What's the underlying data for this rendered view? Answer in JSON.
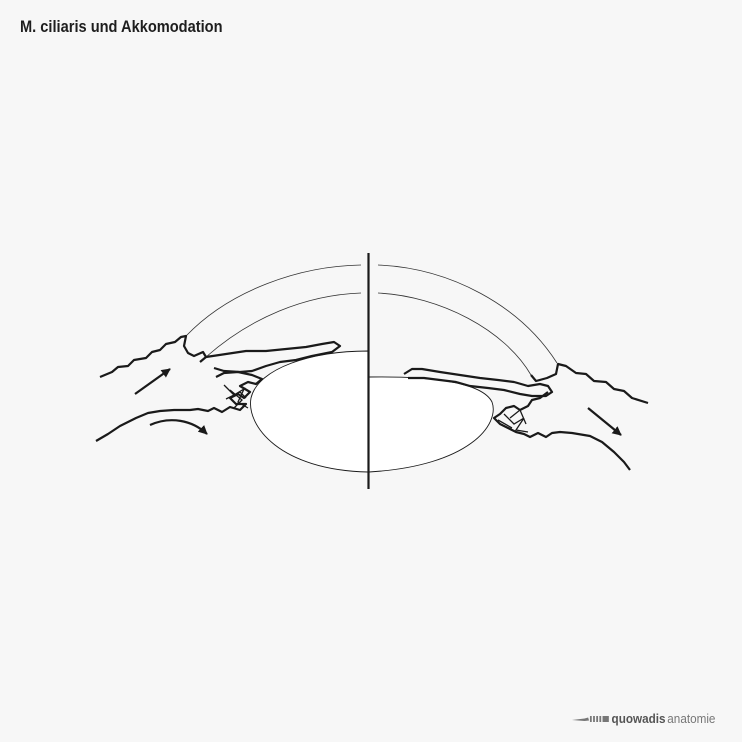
{
  "title": "M. ciliaris und Akkomodation",
  "branding": {
    "name_bold": "quowadis",
    "name_light": "anatomie"
  },
  "colors": {
    "background": "#f7f7f7",
    "line": "#1a1a1a",
    "lens_fill": "#ffffff",
    "logo": "#777777"
  }
}
